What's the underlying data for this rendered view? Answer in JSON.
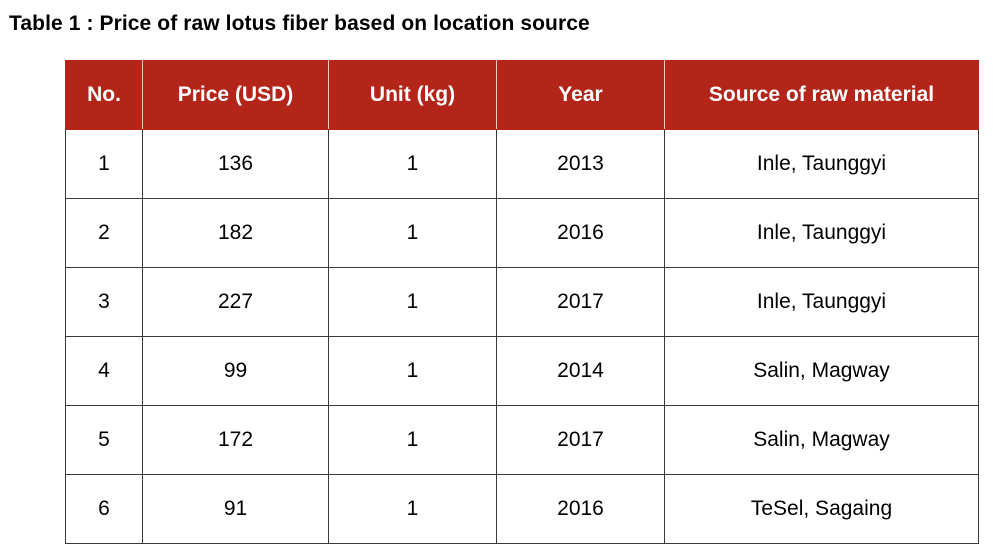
{
  "caption": "Table 1 : Price of raw lotus fiber based on location source",
  "table": {
    "headers": [
      "No.",
      "Price (USD)",
      "Unit (kg)",
      "Year",
      "Source of raw material"
    ],
    "rows": [
      [
        "1",
        "136",
        "1",
        "2013",
        "Inle, Taunggyi"
      ],
      [
        "2",
        "182",
        "1",
        "2016",
        "Inle, Taunggyi"
      ],
      [
        "3",
        "227",
        "1",
        "2017",
        "Inle, Taunggyi"
      ],
      [
        "4",
        "99",
        "1",
        "2014",
        "Salin, Magway"
      ],
      [
        "5",
        "172",
        "1",
        "2017",
        "Salin, Magway"
      ],
      [
        "6",
        "91",
        "1",
        "2016",
        "TeSel, Sagaing"
      ]
    ]
  },
  "colors": {
    "header_background": "#b32419",
    "header_text": "#ffffff",
    "border": "#3a3a3a"
  }
}
